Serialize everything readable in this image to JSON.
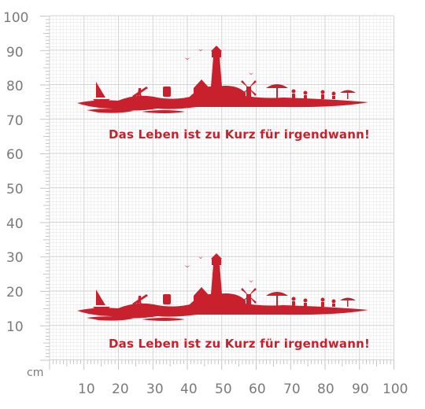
{
  "ruler": {
    "unit": "cm",
    "y_ticks": [
      "100",
      "90",
      "80",
      "70",
      "60",
      "50",
      "40",
      "30",
      "20",
      "10"
    ],
    "x_ticks": [
      "10",
      "20",
      "30",
      "40",
      "50",
      "60",
      "70",
      "80",
      "90",
      "100"
    ],
    "grid_color": "#e4e4e4",
    "label_color": "#7a7a7a"
  },
  "decals": [
    {
      "slogan": "Das Leben ist zu Kurz für irgendwann!",
      "color": "#c8202d",
      "icon": "coastal-skyline-silhouette"
    },
    {
      "slogan": "Das Leben ist zu Kurz für irgendwann!",
      "color": "#c8202d",
      "icon": "coastal-skyline-silhouette"
    }
  ]
}
